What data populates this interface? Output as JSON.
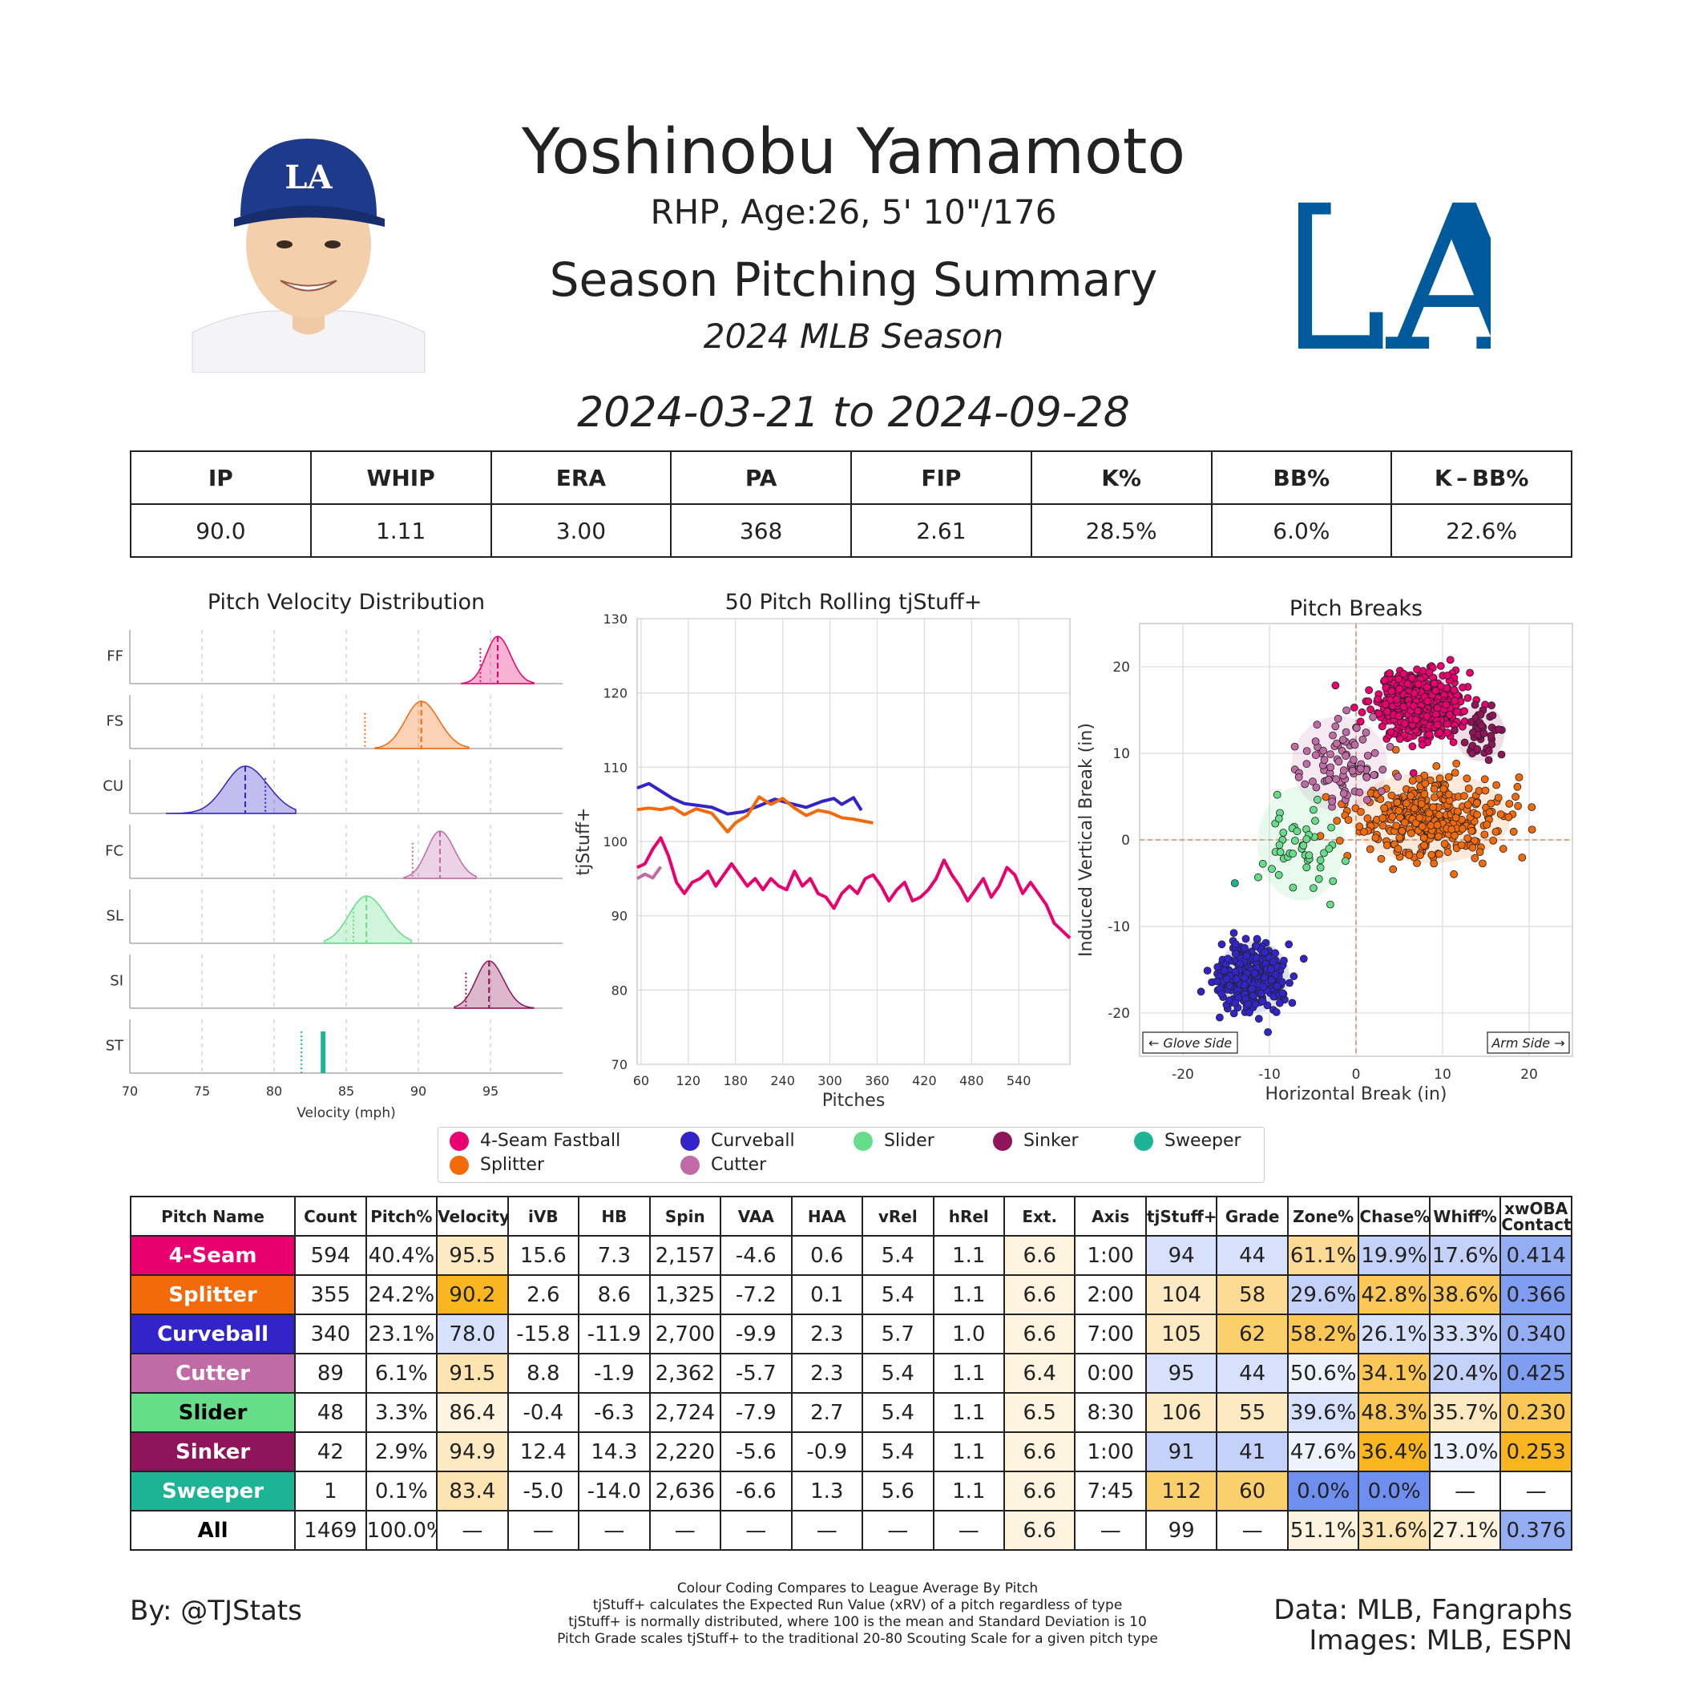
{
  "header": {
    "name": "Yoshinobu Yamamoto",
    "bio": "RHP, Age:26, 5' 10\"/176",
    "summary_title": "Season Pitching Summary",
    "season": "2024 MLB Season",
    "dates": "2024-03-21 to 2024-09-28",
    "cap_logo_text": "LA",
    "team_logo_text": "LA",
    "team_color": "#005A9C"
  },
  "stat_line": {
    "headers": [
      "IP",
      "WHIP",
      "ERA",
      "PA",
      "FIP",
      "K%",
      "BB%",
      "K – BB%"
    ],
    "values": [
      "90.0",
      "1.11",
      "3.00",
      "368",
      "2.61",
      "28.5%",
      "6.0%",
      "22.6%"
    ]
  },
  "colors": {
    "FF": "#E8006F",
    "FS": "#F26A0A",
    "CU": "#3224C9",
    "FC": "#C06BA5",
    "SL": "#66DD88",
    "SI": "#8F1459",
    "ST": "#1DB496",
    "grade_high": "#F9B620",
    "grade_mid_high": "#FDE4B0",
    "grade_low": "#6E8EF0",
    "grade_mid_low": "#D7E1FB"
  },
  "chart_data": [
    {
      "type": "area",
      "title": "Pitch Velocity Distribution",
      "xlabel": "Velocity (mph)",
      "xlim": [
        70,
        100
      ],
      "xticks": [
        70,
        75,
        80,
        85,
        90,
        95
      ],
      "series": [
        {
          "name": "FF",
          "mean": 95.5,
          "league_avg": 94.3,
          "sd": 0.8,
          "min": 93,
          "max": 98
        },
        {
          "name": "FS",
          "mean": 90.2,
          "league_avg": 86.3,
          "sd": 1.1,
          "min": 87,
          "max": 93.5
        },
        {
          "name": "CU",
          "mean": 78.0,
          "league_avg": 79.4,
          "sd": 1.4,
          "min": 72.5,
          "max": 81.5
        },
        {
          "name": "FC",
          "mean": 91.5,
          "league_avg": 89.6,
          "sd": 0.9,
          "min": 89,
          "max": 94
        },
        {
          "name": "SL",
          "mean": 86.4,
          "league_avg": 85.5,
          "sd": 1.2,
          "min": 83.5,
          "max": 89.5
        },
        {
          "name": "SI",
          "mean": 94.9,
          "league_avg": 93.3,
          "sd": 0.9,
          "min": 92.5,
          "max": 98
        },
        {
          "name": "ST",
          "mean": 83.4,
          "league_avg": 81.9,
          "sd": 0,
          "min": 83.4,
          "max": 83.4
        }
      ]
    },
    {
      "type": "line",
      "title": "50 Pitch Rolling tjStuff+",
      "xlabel": "Pitches",
      "ylabel": "tjStuff+",
      "xlim": [
        55,
        605
      ],
      "ylim": [
        70,
        130
      ],
      "xticks": [
        60,
        120,
        180,
        240,
        300,
        360,
        420,
        480,
        540
      ],
      "yticks": [
        70,
        80,
        90,
        100,
        110,
        120,
        130
      ],
      "series": [
        {
          "name": "CU",
          "x": [
            55,
            70,
            85,
            100,
            115,
            130,
            150,
            170,
            190,
            210,
            230,
            250,
            270,
            290,
            305,
            315,
            330,
            340
          ],
          "y": [
            107.2,
            107.8,
            106.8,
            105.8,
            105.1,
            104.9,
            104.6,
            103.7,
            104.0,
            104.8,
            105.7,
            105.1,
            104.6,
            105.4,
            105.8,
            105.0,
            105.9,
            104.2
          ]
        },
        {
          "name": "FS",
          "x": [
            55,
            70,
            85,
            100,
            115,
            130,
            150,
            170,
            180,
            195,
            210,
            225,
            240,
            255,
            270,
            285,
            300,
            315,
            330,
            345,
            355
          ],
          "y": [
            104.3,
            104.5,
            104.3,
            104.6,
            103.6,
            104.4,
            103.8,
            101.3,
            102.5,
            103.5,
            106.0,
            105.0,
            105.8,
            104.5,
            103.5,
            104.2,
            103.9,
            103.2,
            103.0,
            102.7,
            102.5
          ]
        },
        {
          "name": "FC",
          "x": [
            55,
            65,
            75,
            85
          ],
          "y": [
            95.0,
            95.6,
            95.1,
            96.6
          ]
        },
        {
          "name": "FF",
          "x": [
            55,
            65,
            75,
            85,
            95,
            105,
            115,
            125,
            135,
            145,
            155,
            165,
            175,
            185,
            195,
            205,
            215,
            225,
            235,
            245,
            255,
            265,
            275,
            285,
            295,
            305,
            315,
            325,
            335,
            345,
            355,
            365,
            375,
            385,
            395,
            405,
            415,
            425,
            435,
            445,
            455,
            465,
            475,
            485,
            495,
            505,
            515,
            525,
            535,
            545,
            555,
            565,
            575,
            585,
            595,
            605
          ],
          "y": [
            96.5,
            97.0,
            99.0,
            100.5,
            98.0,
            94.5,
            93.0,
            94.5,
            95.0,
            96.0,
            94.0,
            95.5,
            97.0,
            95.5,
            94.0,
            95.0,
            93.5,
            95.0,
            94.0,
            93.5,
            96.0,
            94.0,
            95.0,
            93.0,
            92.5,
            91.0,
            93.0,
            94.0,
            93.0,
            95.0,
            95.5,
            94.0,
            92.0,
            93.5,
            94.5,
            92.0,
            92.5,
            93.5,
            95.0,
            97.5,
            95.5,
            94.0,
            92.0,
            93.5,
            95.0,
            92.5,
            94.0,
            96.5,
            95.5,
            93.0,
            94.5,
            93.0,
            91.5,
            89.0,
            88.0,
            87.0
          ]
        }
      ]
    },
    {
      "type": "scatter",
      "title": "Pitch Breaks",
      "xlabel": "Horizontal Break (in)",
      "ylabel": "Induced Vertical Break (in)",
      "xlim": [
        -25,
        25
      ],
      "ylim": [
        -25,
        25
      ],
      "xticks": [
        -20,
        -10,
        0,
        10,
        20
      ],
      "yticks": [
        -20,
        -10,
        0,
        10,
        20
      ],
      "annotations": {
        "left": "← Glove Side",
        "right": "Arm Side →"
      },
      "series": [
        {
          "name": "FF",
          "hb": 7.3,
          "ivb": 15.6,
          "count": 594,
          "sd_x": 2.3,
          "sd_y": 1.8
        },
        {
          "name": "FS",
          "hb": 8.6,
          "ivb": 2.6,
          "count": 355,
          "sd_x": 4.2,
          "sd_y": 2.4
        },
        {
          "name": "CU",
          "hb": -11.9,
          "ivb": -15.8,
          "count": 340,
          "sd_x": 1.9,
          "sd_y": 1.9
        },
        {
          "name": "FC",
          "hb": -1.9,
          "ivb": 8.8,
          "count": 89,
          "sd_x": 2.5,
          "sd_y": 2.5
        },
        {
          "name": "SL",
          "hb": -6.3,
          "ivb": -0.4,
          "count": 48,
          "sd_x": 2.3,
          "sd_y": 3.0
        },
        {
          "name": "SI",
          "hb": 14.3,
          "ivb": 12.4,
          "count": 42,
          "sd_x": 1.3,
          "sd_y": 1.5
        },
        {
          "name": "ST",
          "hb": -14.0,
          "ivb": -5.0,
          "count": 1,
          "sd_x": 0,
          "sd_y": 0
        }
      ]
    }
  ],
  "legend": [
    {
      "label": "4-Seam Fastball",
      "color": "#E8006F"
    },
    {
      "label": "Curveball",
      "color": "#3224C9"
    },
    {
      "label": "Slider",
      "color": "#66DD88"
    },
    {
      "label": "Sinker",
      "color": "#8F1459"
    },
    {
      "label": "Sweeper",
      "color": "#1DB496"
    },
    {
      "label": "Splitter",
      "color": "#F26A0A"
    },
    {
      "label": "Cutter",
      "color": "#C06BA5"
    }
  ],
  "pitch_table": {
    "headers": [
      "Pitch Name",
      "Count",
      "Pitch%",
      "Velocity",
      "iVB",
      "HB",
      "Spin",
      "VAA",
      "HAA",
      "vRel",
      "hRel",
      "Ext.",
      "Axis",
      "tjStuff+",
      "Grade",
      "Zone%",
      "Chase%",
      "Whiff%",
      "xwOBA Contact"
    ],
    "rows": [
      {
        "name": "4-Seam",
        "bg": "#E8006F",
        "fg": "#ffffff",
        "cells": [
          "594",
          "40.4%",
          "95.5",
          "15.6",
          "7.3",
          "2,157",
          "-4.6",
          "0.6",
          "5.4",
          "1.1",
          "6.6",
          "1:00",
          "94",
          "44",
          "61.1%",
          "19.9%",
          "17.6%",
          "0.414"
        ],
        "shade": [
          "",
          "",
          "#FDE9C2",
          "",
          "",
          "",
          "",
          "",
          "",
          "",
          "#FEF4DF",
          "",
          "#D7E1FB",
          "#D7E1FB",
          "#FDDB94",
          "#C4D1F8",
          "#C4D1F8",
          "#95AEF3"
        ]
      },
      {
        "name": "Splitter",
        "bg": "#F26A0A",
        "fg": "#ffffff",
        "cells": [
          "355",
          "24.2%",
          "90.2",
          "2.6",
          "8.6",
          "1,325",
          "-7.2",
          "0.1",
          "5.4",
          "1.1",
          "6.6",
          "2:00",
          "104",
          "58",
          "29.6%",
          "42.8%",
          "38.6%",
          "0.366"
        ],
        "shade": [
          "",
          "",
          "#F9B620",
          "",
          "",
          "",
          "",
          "",
          "",
          "",
          "#FEF4DF",
          "",
          "#FDE9C2",
          "#FDDB94",
          "#C4D1F8",
          "#FBC757",
          "#FBC757",
          "#7F9DF1"
        ]
      },
      {
        "name": "Curveball",
        "bg": "#3224C9",
        "fg": "#ffffff",
        "cells": [
          "340",
          "23.1%",
          "78.0",
          "-15.8",
          "-11.9",
          "2,700",
          "-9.9",
          "2.3",
          "5.7",
          "1.0",
          "6.6",
          "7:00",
          "105",
          "62",
          "58.2%",
          "26.1%",
          "33.3%",
          "0.340"
        ],
        "shade": [
          "",
          "",
          "#D7E1FB",
          "",
          "",
          "",
          "",
          "",
          "",
          "",
          "#FEF4DF",
          "",
          "#FDE9C2",
          "#FCCF6D",
          "#FBC757",
          "#D7E1FB",
          "#D7E1FB",
          "#95AEF3"
        ]
      },
      {
        "name": "Cutter",
        "bg": "#C06BA5",
        "fg": "#ffffff",
        "cells": [
          "89",
          "6.1%",
          "91.5",
          "8.8",
          "-1.9",
          "2,362",
          "-5.7",
          "2.3",
          "5.4",
          "1.1",
          "6.4",
          "0:00",
          "95",
          "44",
          "50.6%",
          "34.1%",
          "20.4%",
          "0.425"
        ],
        "shade": [
          "",
          "",
          "#FDE4B0",
          "",
          "",
          "",
          "",
          "",
          "",
          "",
          "#FEF4DF",
          "",
          "#D7E1FB",
          "#D7E1FB",
          "#EEF2FD",
          "#FBC757",
          "#C4D1F8",
          "#7F9DF1"
        ]
      },
      {
        "name": "Slider",
        "bg": "#66DD88",
        "fg": "#000000",
        "cells": [
          "48",
          "3.3%",
          "86.4",
          "-0.4",
          "-6.3",
          "2,724",
          "-7.9",
          "2.7",
          "5.4",
          "1.1",
          "6.5",
          "8:30",
          "106",
          "55",
          "39.6%",
          "48.3%",
          "35.7%",
          "0.230"
        ],
        "shade": [
          "",
          "",
          "#FEF4DF",
          "",
          "",
          "",
          "",
          "",
          "",
          "",
          "#FEF4DF",
          "",
          "#FDE9C2",
          "#FDE9C2",
          "#D7E1FB",
          "#FBC757",
          "#FDE9C2",
          "#FBC757"
        ]
      },
      {
        "name": "Sinker",
        "bg": "#8F1459",
        "fg": "#ffffff",
        "cells": [
          "42",
          "2.9%",
          "94.9",
          "12.4",
          "14.3",
          "2,220",
          "-5.6",
          "-0.9",
          "5.4",
          "1.1",
          "6.6",
          "1:00",
          "91",
          "41",
          "47.6%",
          "36.4%",
          "13.0%",
          "0.253"
        ],
        "shade": [
          "",
          "",
          "#FDE9C2",
          "",
          "",
          "",
          "",
          "",
          "",
          "",
          "#FEF4DF",
          "",
          "#C4D1F8",
          "#C4D1F8",
          "#EEF2FD",
          "#F9B620",
          "#EEF2FD",
          "#F9B620"
        ]
      },
      {
        "name": "Sweeper",
        "bg": "#1DB496",
        "fg": "#ffffff",
        "cells": [
          "1",
          "0.1%",
          "83.4",
          "-5.0",
          "-14.0",
          "2,636",
          "-6.6",
          "1.3",
          "5.6",
          "1.1",
          "6.6",
          "7:45",
          "112",
          "60",
          "0.0%",
          "0.0%",
          "—",
          "—"
        ],
        "shade": [
          "",
          "",
          "#FDE4B0",
          "",
          "",
          "",
          "",
          "",
          "",
          "",
          "#FEF4DF",
          "",
          "#FCCF6D",
          "#FCCF6D",
          "#6E8EF0",
          "#6E8EF0",
          "",
          ""
        ]
      },
      {
        "name": "All",
        "bg": "#ffffff",
        "fg": "#000000",
        "cells": [
          "1469",
          "100.0%",
          "—",
          "—",
          "—",
          "—",
          "—",
          "—",
          "—",
          "—",
          "6.6",
          "—",
          "99",
          "—",
          "51.1%",
          "31.6%",
          "27.1%",
          "0.376"
        ],
        "shade": [
          "",
          "",
          "",
          "",
          "",
          "",
          "",
          "",
          "",
          "",
          "#FEF4DF",
          "",
          "",
          "",
          "#FDF4DF",
          "#FDE4B0",
          "#FEF4DF",
          "#95AEF3"
        ]
      }
    ]
  },
  "footer": {
    "author": "By: @TJStats",
    "notes": [
      "Colour Coding Compares to League Average By Pitch",
      "tjStuff+ calculates the Expected Run Value (xRV) of a pitch regardless of type",
      "tjStuff+ is normally distributed, where 100 is the mean and Standard Deviation is 10",
      "Pitch Grade scales tjStuff+ to the traditional 20-80 Scouting Scale for a given pitch type"
    ],
    "data_source": "Data: MLB, Fangraphs",
    "image_source": "Images: MLB, ESPN"
  }
}
